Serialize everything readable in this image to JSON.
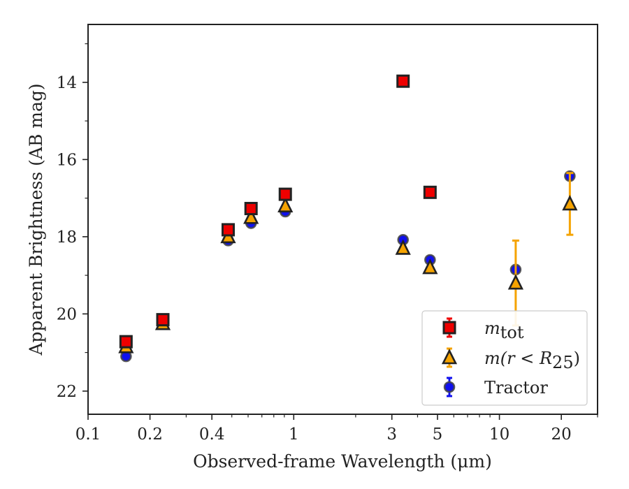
{
  "chart_data": {
    "type": "scatter",
    "xlabel": "Observed-frame Wavelength (μm)",
    "ylabel": "Apparent Brightness (AB mag)",
    "xscale": "log",
    "xlim": [
      0.1,
      30
    ],
    "ylim": [
      22.6,
      12.5
    ],
    "y_inverted": true,
    "x_ticks": [
      {
        "value": 0.1,
        "label": "0.1"
      },
      {
        "value": 0.2,
        "label": "0.2"
      },
      {
        "value": 0.4,
        "label": "0.4"
      },
      {
        "value": 1,
        "label": "1"
      },
      {
        "value": 3,
        "label": "3"
      },
      {
        "value": 5,
        "label": "5"
      },
      {
        "value": 10,
        "label": "10"
      },
      {
        "value": 20,
        "label": "20"
      }
    ],
    "x_minor_ticks": [
      0.3,
      0.5,
      0.6,
      0.7,
      0.8,
      0.9,
      2,
      4,
      6,
      7,
      8,
      9,
      30
    ],
    "y_ticks": [
      {
        "value": 14,
        "label": "14"
      },
      {
        "value": 16,
        "label": "16"
      },
      {
        "value": 18,
        "label": "18"
      },
      {
        "value": 20,
        "label": "20"
      },
      {
        "value": 22,
        "label": "22"
      }
    ],
    "y_minor_ticks": [
      13,
      15,
      17,
      19,
      21
    ],
    "grid": false,
    "legend_position": "lower-right",
    "series": [
      {
        "key": "tractor",
        "name_plain": "Tractor",
        "marker": "circle",
        "color": "#1010ee",
        "edge_color": "#444444",
        "points": [
          {
            "x": 0.153,
            "y": 21.1
          },
          {
            "x": 0.231,
            "y": 20.2
          },
          {
            "x": 0.48,
            "y": 18.1
          },
          {
            "x": 0.62,
            "y": 17.65
          },
          {
            "x": 0.91,
            "y": 17.35
          },
          {
            "x": 3.4,
            "y": 18.08
          },
          {
            "x": 4.6,
            "y": 18.6
          },
          {
            "x": 12.0,
            "y": 18.85
          },
          {
            "x": 22.0,
            "y": 16.43
          }
        ]
      },
      {
        "key": "m_r25",
        "name_italic": "m",
        "name_rest": "(r < R",
        "name_sub": "25",
        "name_close": ")",
        "marker": "triangle",
        "color": "#f5a300",
        "edge_color": "#222222",
        "points": [
          {
            "x": 0.153,
            "y": 20.85
          },
          {
            "x": 0.231,
            "y": 20.25
          },
          {
            "x": 0.48,
            "y": 18.0
          },
          {
            "x": 0.62,
            "y": 17.5
          },
          {
            "x": 0.91,
            "y": 17.2
          },
          {
            "x": 3.4,
            "y": 18.3
          },
          {
            "x": 4.6,
            "y": 18.8
          },
          {
            "x": 12.0,
            "y": 19.2,
            "err": 1.1
          },
          {
            "x": 22.0,
            "y": 17.15,
            "err": 0.8
          }
        ]
      },
      {
        "key": "m_tot",
        "name_italic": "m",
        "name_sub": "tot",
        "marker": "square",
        "color": "#ee0000",
        "edge_color": "#222222",
        "points": [
          {
            "x": 0.153,
            "y": 20.72
          },
          {
            "x": 0.231,
            "y": 20.15
          },
          {
            "x": 0.48,
            "y": 17.82
          },
          {
            "x": 0.62,
            "y": 17.27
          },
          {
            "x": 0.91,
            "y": 16.9
          },
          {
            "x": 3.4,
            "y": 13.97
          },
          {
            "x": 4.6,
            "y": 16.85
          }
        ]
      }
    ]
  }
}
